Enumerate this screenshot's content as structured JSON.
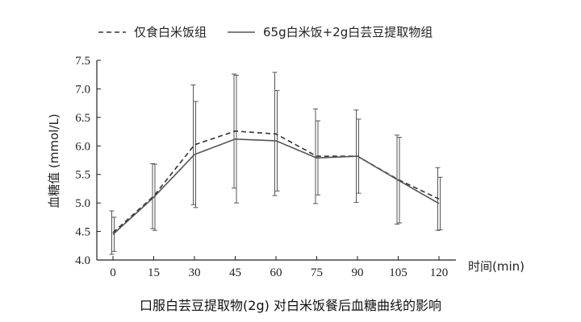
{
  "chart_data": {
    "type": "line",
    "title": "口服白芸豆提取物(2g) 对白米饭餐后血糖曲线的影响",
    "xlabel": "时间(min)",
    "ylabel": "血糖值 (mmol/L)",
    "x": [
      0,
      15,
      30,
      45,
      60,
      75,
      90,
      105,
      120
    ],
    "x_tick_labels": [
      "0",
      "15",
      "30",
      "45",
      "60",
      "75",
      "90",
      "105",
      "120"
    ],
    "ylim": [
      4.0,
      7.5
    ],
    "y_ticks": [
      4.0,
      4.5,
      5.0,
      5.5,
      6.0,
      6.5,
      7.0,
      7.5
    ],
    "y_tick_labels": [
      "4.0",
      "4.5",
      "5.0",
      "5.5",
      "6.0",
      "6.5",
      "7.0",
      "7.5"
    ],
    "grid": false,
    "legend_position": "top",
    "series": [
      {
        "name": "仅食白米饭组",
        "style": "dashed",
        "color": "#333333",
        "values": [
          4.48,
          5.12,
          6.02,
          6.26,
          6.21,
          5.82,
          5.82,
          5.41,
          5.07
        ],
        "error": [
          0.38,
          0.57,
          1.05,
          1.0,
          1.08,
          0.83,
          0.81,
          0.78,
          0.55
        ]
      },
      {
        "name": "65g白米饭+2g白芸豆提取物组",
        "style": "solid",
        "color": "#555555",
        "values": [
          4.45,
          5.1,
          5.85,
          6.12,
          6.09,
          5.79,
          5.82,
          5.4,
          4.99
        ],
        "error": [
          0.3,
          0.58,
          0.93,
          1.12,
          0.88,
          0.65,
          0.65,
          0.75,
          0.46
        ]
      }
    ]
  }
}
